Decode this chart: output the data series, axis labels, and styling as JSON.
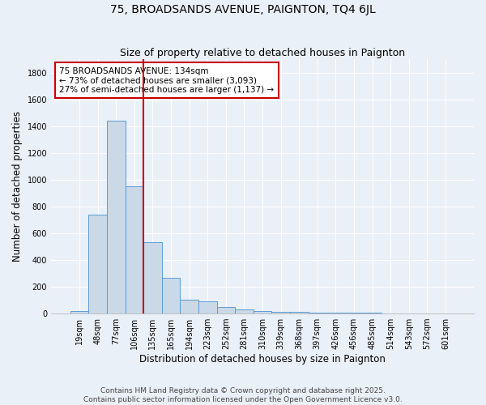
{
  "title": "75, BROADSANDS AVENUE, PAIGNTON, TQ4 6JL",
  "subtitle": "Size of property relative to detached houses in Paignton",
  "xlabel": "Distribution of detached houses by size in Paignton",
  "ylabel": "Number of detached properties",
  "bin_labels": [
    "19sqm",
    "48sqm",
    "77sqm",
    "106sqm",
    "135sqm",
    "165sqm",
    "194sqm",
    "223sqm",
    "252sqm",
    "281sqm",
    "310sqm",
    "339sqm",
    "368sqm",
    "397sqm",
    "426sqm",
    "456sqm",
    "485sqm",
    "514sqm",
    "543sqm",
    "572sqm",
    "601sqm"
  ],
  "bar_heights": [
    20,
    740,
    1440,
    950,
    535,
    265,
    105,
    90,
    50,
    30,
    20,
    10,
    10,
    5,
    5,
    5,
    5,
    2,
    2,
    2,
    2
  ],
  "bar_color": "#c9d9e8",
  "bar_edge_color": "#5b9bd5",
  "vline_x_index": 4,
  "vline_color": "#cc0000",
  "annotation_line1": "75 BROADSANDS AVENUE: 134sqm",
  "annotation_line2": "← 73% of detached houses are smaller (3,093)",
  "annotation_line3": "27% of semi-detached houses are larger (1,137) →",
  "annotation_box_color": "#ffffff",
  "annotation_edge_color": "#cc0000",
  "footer_line1": "Contains HM Land Registry data © Crown copyright and database right 2025.",
  "footer_line2": "Contains public sector information licensed under the Open Government Licence v3.0.",
  "ylim": [
    0,
    1900
  ],
  "yticks": [
    0,
    200,
    400,
    600,
    800,
    1000,
    1200,
    1400,
    1600,
    1800
  ],
  "background_color": "#eaf0f8",
  "grid_color": "#ffffff",
  "title_fontsize": 10,
  "subtitle_fontsize": 9,
  "axis_label_fontsize": 8.5,
  "tick_fontsize": 7,
  "annotation_fontsize": 7.5,
  "footer_fontsize": 6.5
}
